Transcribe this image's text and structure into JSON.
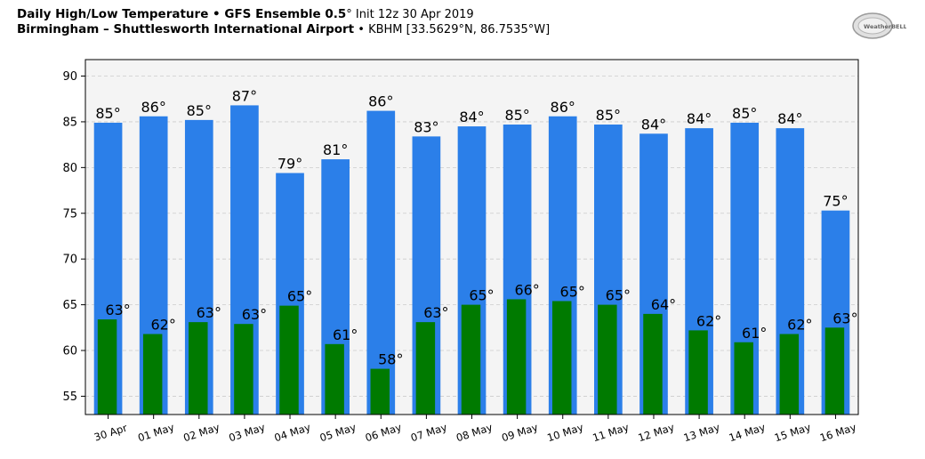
{
  "header": {
    "line1_bold": "Daily High/Low Temperature • GFS Ensemble 0.5",
    "degree": "°",
    "line1_normal": " Init 12z 30 Apr 2019",
    "line2_bold": "Birmingham – Shuttlesworth International Airport",
    "line2_normal": " • KBHM [33.5629°N, 86.7535°W]"
  },
  "logo": {
    "text": "WeatherBELL"
  },
  "colors": {
    "high": "#2b7fe9",
    "low": "#007a00",
    "plot_bg": "#f4f4f4",
    "grid": "#cccccc"
  },
  "chart_data": {
    "type": "bar",
    "title": "Daily High/Low Temperature • GFS Ensemble 0.5° Init 12z 30 Apr 2019",
    "subtitle": "Birmingham – Shuttlesworth International Airport • KBHM [33.5629°N, 86.7535°W]",
    "xlabel": "",
    "ylabel": "",
    "ylim": [
      53,
      91.8
    ],
    "yticks": [
      55,
      60,
      65,
      70,
      75,
      80,
      85,
      90
    ],
    "grid": true,
    "categories": [
      "30 Apr",
      "01 May",
      "02 May",
      "03 May",
      "04 May",
      "05 May",
      "06 May",
      "07 May",
      "08 May",
      "09 May",
      "10 May",
      "11 May",
      "12 May",
      "13 May",
      "14 May",
      "15 May",
      "16 May"
    ],
    "series": [
      {
        "role": "high",
        "values": [
          84.9,
          85.6,
          85.2,
          86.8,
          79.4,
          80.9,
          86.2,
          83.4,
          84.5,
          84.7,
          85.6,
          84.7,
          83.7,
          84.3,
          84.9,
          84.3,
          75.3
        ],
        "labels": [
          "85°",
          "86°",
          "85°",
          "87°",
          "79°",
          "81°",
          "86°",
          "83°",
          "84°",
          "85°",
          "86°",
          "85°",
          "84°",
          "84°",
          "85°",
          "84°",
          "75°"
        ]
      },
      {
        "role": "low",
        "values": [
          63.4,
          61.8,
          63.1,
          62.9,
          64.9,
          60.7,
          58.0,
          63.1,
          65.0,
          65.6,
          65.4,
          65.0,
          64.0,
          62.2,
          60.9,
          61.8,
          62.5
        ],
        "labels": [
          "63°",
          "62°",
          "63°",
          "63°",
          "65°",
          "61°",
          "58°",
          "63°",
          "65°",
          "66°",
          "65°",
          "65°",
          "64°",
          "62°",
          "61°",
          "62°",
          "63°"
        ]
      }
    ]
  }
}
